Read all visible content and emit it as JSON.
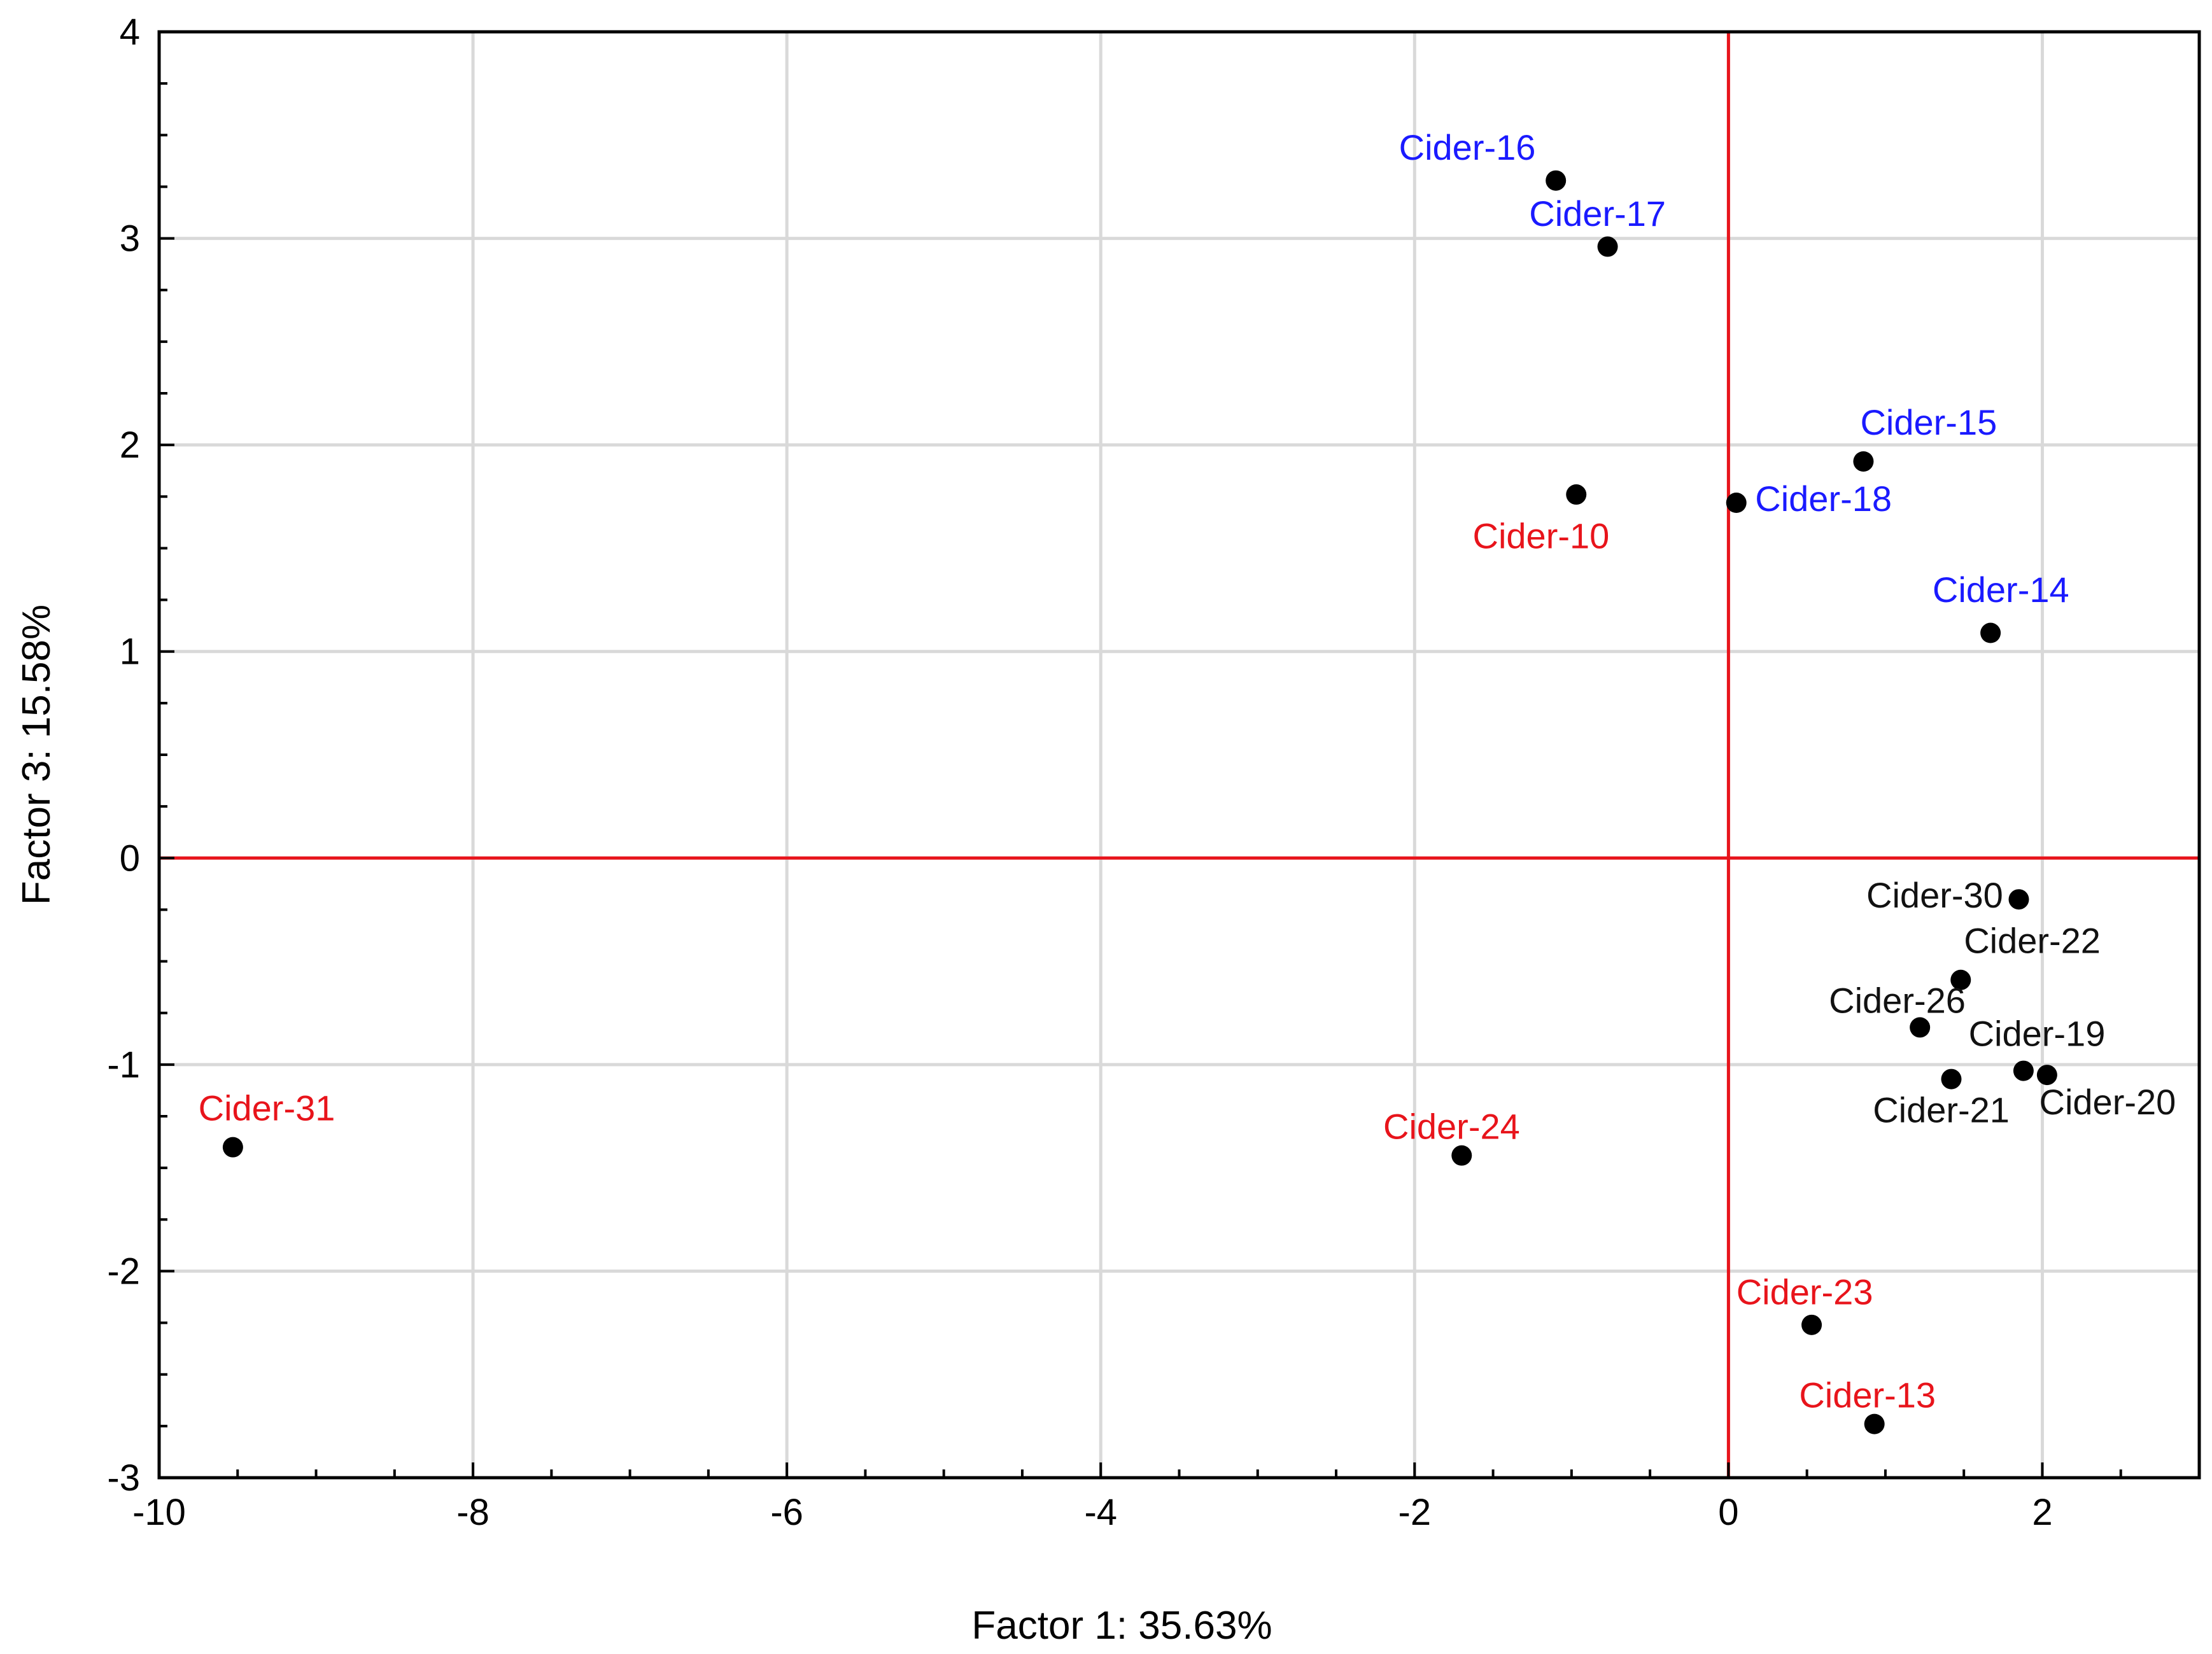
{
  "chart_data": {
    "type": "scatter",
    "title": "",
    "xlabel": "Factor 1: 35.63%",
    "ylabel": "Factor 3: 15.58%",
    "xlim": [
      -10,
      3
    ],
    "ylim": [
      -3,
      4
    ],
    "xticks": [
      -10,
      -8,
      -6,
      -4,
      -2,
      0,
      2
    ],
    "yticks": [
      -3,
      -2,
      -1,
      0,
      1,
      2,
      3,
      4
    ],
    "xtick_labels": [
      "-10",
      "-8",
      "-6",
      "-4",
      "-2",
      "0",
      "2"
    ],
    "ytick_labels": [
      "-3",
      "-2",
      "-1",
      "0",
      "1",
      "2",
      "3",
      "4"
    ],
    "grid": true,
    "reference_lines": {
      "x": 0,
      "y": 0,
      "color": "#e8141b"
    },
    "colors": {
      "blue": "#1a1aff",
      "red": "#e8141b",
      "black": "#111111",
      "grid": "#d9d9d9",
      "marker": "#000000"
    },
    "points": [
      {
        "label": "Cider-16",
        "x": -1.1,
        "y": 3.28,
        "group": "blue",
        "anchor": "start",
        "dx": -1.0,
        "dy": 0.1
      },
      {
        "label": "Cider-17",
        "x": -0.77,
        "y": 2.96,
        "group": "blue",
        "anchor": "start",
        "dx": -0.5,
        "dy": 0.1
      },
      {
        "label": "Cider-15",
        "x": 0.86,
        "y": 1.92,
        "group": "blue",
        "anchor": "start",
        "dx": -0.02,
        "dy": 0.13
      },
      {
        "label": "Cider-18",
        "x": 0.05,
        "y": 1.72,
        "group": "blue",
        "anchor": "start",
        "dx": 0.12,
        "dy": -0.04
      },
      {
        "label": "Cider-14",
        "x": 1.67,
        "y": 1.09,
        "group": "blue",
        "anchor": "start",
        "dx": -0.37,
        "dy": 0.15
      },
      {
        "label": "Cider-10",
        "x": -0.97,
        "y": 1.76,
        "group": "red",
        "anchor": "start",
        "dx": -0.66,
        "dy": -0.26
      },
      {
        "label": "Cider-31",
        "x": -9.53,
        "y": -1.4,
        "group": "red",
        "anchor": "start",
        "dx": -0.22,
        "dy": 0.13
      },
      {
        "label": "Cider-24",
        "x": -1.7,
        "y": -1.44,
        "group": "red",
        "anchor": "start",
        "dx": -0.5,
        "dy": 0.08
      },
      {
        "label": "Cider-23",
        "x": 0.53,
        "y": -2.26,
        "group": "red",
        "anchor": "start",
        "dx": -0.48,
        "dy": 0.1
      },
      {
        "label": "Cider-13",
        "x": 0.93,
        "y": -2.74,
        "group": "red",
        "anchor": "start",
        "dx": -0.48,
        "dy": 0.08
      },
      {
        "label": "Cider-30",
        "x": 1.85,
        "y": -0.2,
        "group": "black",
        "anchor": "end",
        "dx": -0.1,
        "dy": -0.04
      },
      {
        "label": "Cider-22",
        "x": 1.48,
        "y": -0.59,
        "group": "black",
        "anchor": "start",
        "dx": 0.02,
        "dy": 0.13
      },
      {
        "label": "Cider-26",
        "x": 1.22,
        "y": -0.82,
        "group": "black",
        "anchor": "start",
        "dx": -0.58,
        "dy": 0.07
      },
      {
        "label": "Cider-19",
        "x": 1.88,
        "y": -1.03,
        "group": "black",
        "anchor": "start",
        "dx": -0.35,
        "dy": 0.12
      },
      {
        "label": "Cider-20",
        "x": 2.03,
        "y": -1.05,
        "group": "black",
        "anchor": "start",
        "dx": -0.05,
        "dy": -0.19
      },
      {
        "label": "Cider-21",
        "x": 1.42,
        "y": -1.07,
        "group": "black",
        "anchor": "start",
        "dx": -0.5,
        "dy": -0.21
      }
    ]
  }
}
